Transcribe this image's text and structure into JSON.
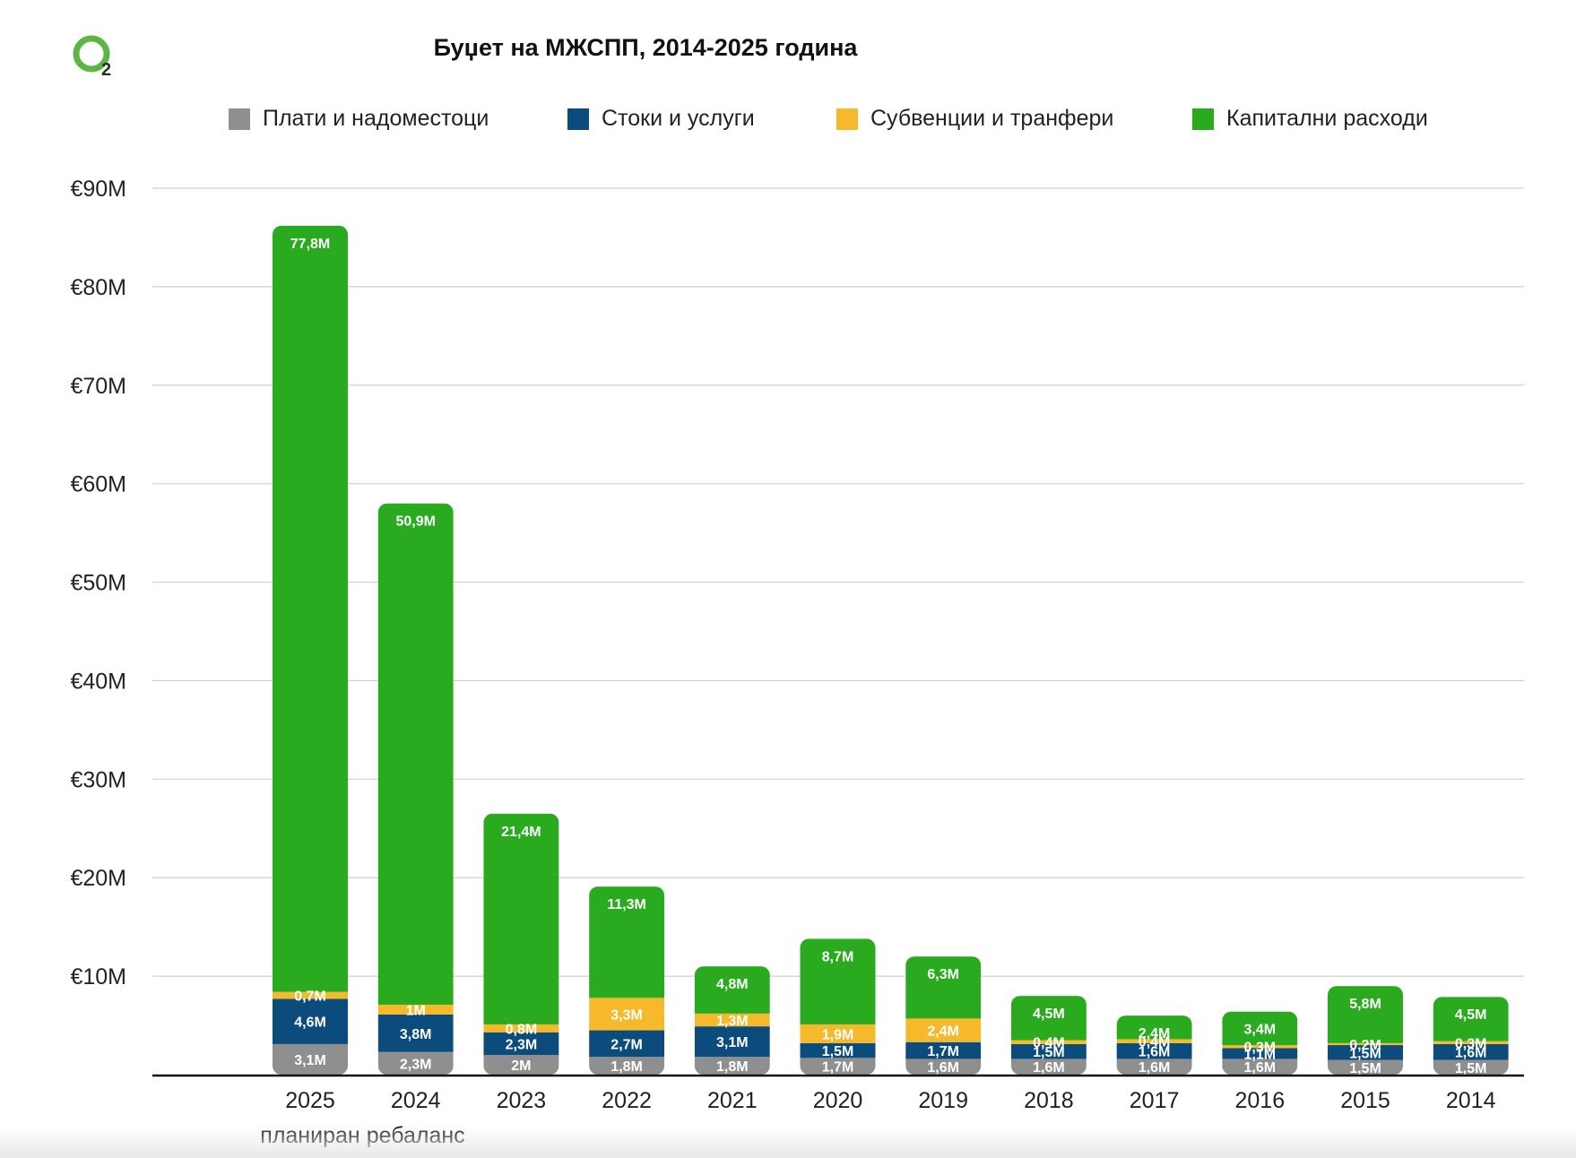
{
  "chart_data": {
    "type": "bar",
    "stacked": true,
    "title": "Буџет на МЖСПП, 2014-2025 година",
    "categories": [
      "2025 планиран",
      "2024 ребаланс",
      "2023",
      "2022",
      "2021",
      "2020",
      "2019",
      "2018",
      "2017",
      "2016",
      "2015",
      "2014"
    ],
    "category_lines": [
      [
        "2025",
        "планиран"
      ],
      [
        "2024",
        "ребаланс"
      ],
      [
        "2023"
      ],
      [
        "2022"
      ],
      [
        "2021"
      ],
      [
        "2020"
      ],
      [
        "2019"
      ],
      [
        "2018"
      ],
      [
        "2017"
      ],
      [
        "2016"
      ],
      [
        "2015"
      ],
      [
        "2014"
      ]
    ],
    "series": [
      {
        "name": "Плати и надоместоци",
        "color": "#8f8f8f",
        "values": [
          3.1,
          2.3,
          2.0,
          1.8,
          1.8,
          1.7,
          1.6,
          1.6,
          1.6,
          1.6,
          1.5,
          1.5
        ],
        "labels": [
          "3,1M",
          "2,3M",
          "2M",
          "1,8M",
          "1,8M",
          "1,7M",
          "1,6M",
          "1,6M",
          "1,6M",
          "1,6M",
          "1,5M",
          "1,5M"
        ]
      },
      {
        "name": "Стоки и услуги",
        "color": "#0b4c7d",
        "values": [
          4.6,
          3.8,
          2.3,
          2.7,
          3.1,
          1.5,
          1.7,
          1.5,
          1.6,
          1.1,
          1.5,
          1.6
        ],
        "labels": [
          "4,6M",
          "3,8M",
          "2,3M",
          "2,7M",
          "3,1M",
          "1,5M",
          "1,7M",
          "1,5M",
          "1,6M",
          "1,1M",
          "1,5M",
          "1,6M"
        ]
      },
      {
        "name": "Субвенции и транфери",
        "color": "#f6b92b",
        "values": [
          0.7,
          1.0,
          0.8,
          3.3,
          1.3,
          1.9,
          2.4,
          0.4,
          0.4,
          0.3,
          0.2,
          0.3
        ],
        "labels": [
          "0,7M",
          "1M",
          "0,8M",
          "3,3M",
          "1,3M",
          "1,9M",
          "2,4M",
          "0,4M",
          "0,4M",
          "0,3M",
          "0,2M",
          "0,3M"
        ]
      },
      {
        "name": "Капитални расходи",
        "color": "#2aab1f",
        "values": [
          77.8,
          50.9,
          21.4,
          11.3,
          4.8,
          8.7,
          6.3,
          4.5,
          2.4,
          3.4,
          5.8,
          4.5
        ],
        "labels": [
          "77,8M",
          "50,9M",
          "21,4M",
          "11,3M",
          "4,8M",
          "8,7M",
          "6,3M",
          "4,5M",
          "2,4M",
          "3,4M",
          "5,8M",
          "4,5M"
        ]
      }
    ],
    "y_ticks": [
      10,
      20,
      30,
      40,
      50,
      60,
      70,
      80,
      90
    ],
    "y_tick_labels": [
      "€10M",
      "€20M",
      "€30M",
      "€40M",
      "€50M",
      "€60M",
      "€70M",
      "€80M",
      "€90M"
    ],
    "ylim": [
      0,
      90
    ],
    "xlabel": "",
    "ylabel": "",
    "grid": true,
    "legend_position": "top"
  },
  "logo": {
    "subscript": "2",
    "color": "#5db544"
  }
}
